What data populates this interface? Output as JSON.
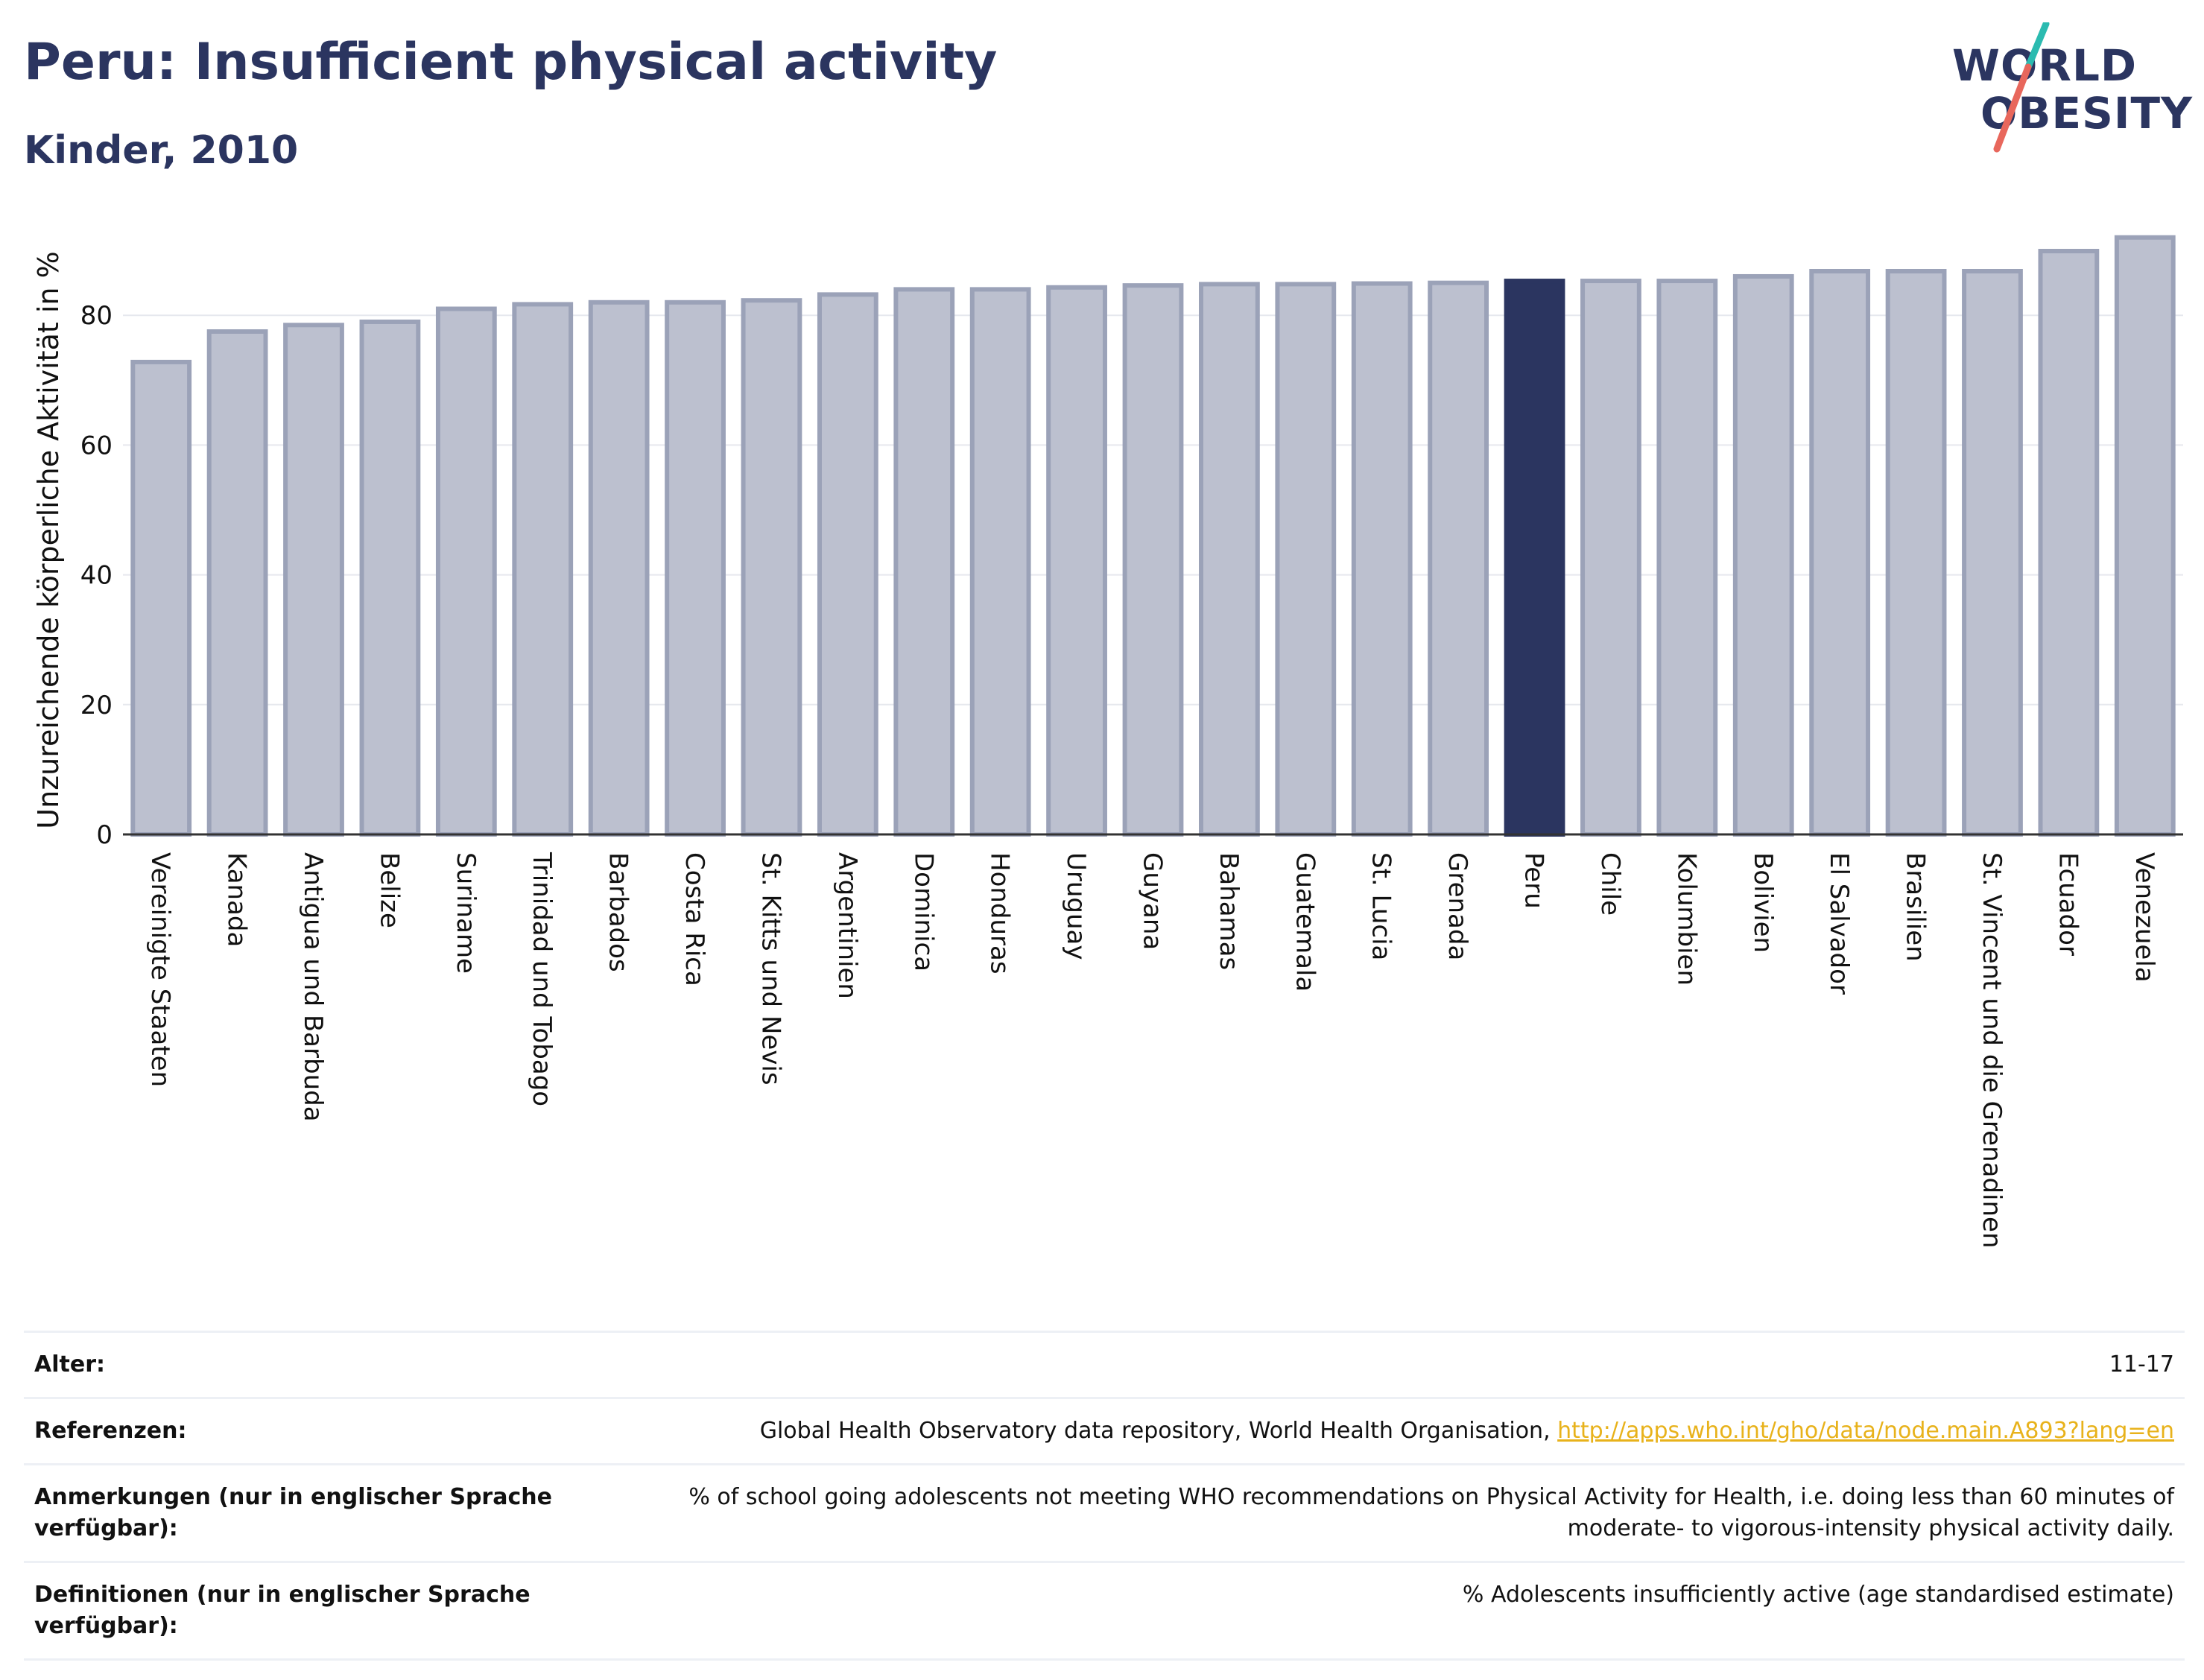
{
  "header": {
    "title": "Peru: Insufficient physical activity",
    "subtitle": "Kinder, 2010"
  },
  "logo": {
    "line1": "WORLD",
    "line2": "OBESITY"
  },
  "colors": {
    "bar": "#bcc0cf",
    "bar_border": "#9ba2b8",
    "highlight": "#2b3560",
    "accent_teal": "#2bbbb0",
    "accent_red": "#e8675c",
    "link": "#e8b21b"
  },
  "chart_data": {
    "type": "bar",
    "ylabel": "Unzureichende körperliche Aktivität in %",
    "ylim": [
      0,
      93
    ],
    "yticks": [
      0,
      20,
      40,
      60,
      80
    ],
    "grid": true,
    "highlight": "Peru",
    "categories": [
      "Vereinigte Staaten",
      "Kanada",
      "Antigua und Barbuda",
      "Belize",
      "Suriname",
      "Trinidad und Tobago",
      "Barbados",
      "Costa Rica",
      "St. Kitts und Nevis",
      "Argentinien",
      "Dominica",
      "Honduras",
      "Uruguay",
      "Guyana",
      "Bahamas",
      "Guatemala",
      "St. Lucia",
      "Grenada",
      "Peru",
      "Chile",
      "Kolumbien",
      "Bolivien",
      "El Salvador",
      "Brasilien",
      "St. Vincent und die Grenadinen",
      "Ecuador",
      "Venezuela"
    ],
    "values": [
      72.8,
      77.5,
      78.5,
      79.0,
      81.0,
      81.7,
      82.0,
      82.0,
      82.3,
      83.2,
      84.0,
      84.0,
      84.3,
      84.6,
      84.8,
      84.8,
      84.9,
      85.0,
      85.3,
      85.3,
      85.3,
      86.0,
      86.8,
      86.8,
      86.8,
      89.9,
      92.0
    ]
  },
  "meta": [
    {
      "key": "Alter:",
      "value": "11-17"
    },
    {
      "key": "Referenzen:",
      "value": "Global Health Observatory data repository, World Health Organisation, ",
      "link": "http://apps.who.int/gho/data/node.main.A893?lang=en"
    },
    {
      "key": "Anmerkungen (nur in englischer Sprache verfügbar):",
      "value": "% of school going adolescents not meeting WHO recommendations on Physical Activity for Health, i.e. doing less than 60 minutes of moderate- to vigorous-intensity physical activity daily."
    },
    {
      "key": "Definitionen (nur in englischer Sprache verfügbar):",
      "value": "% Adolescents insufficiently active (age standardised estimate)"
    }
  ]
}
